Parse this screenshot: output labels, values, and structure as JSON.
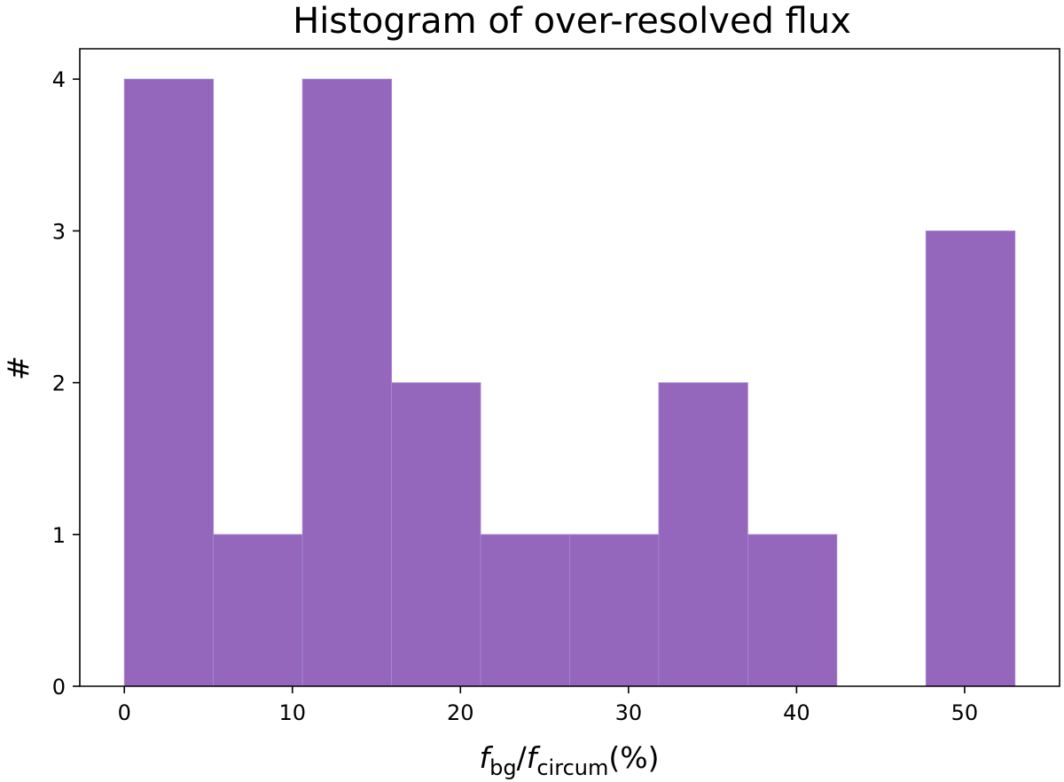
{
  "chart_data": {
    "type": "bar",
    "title": "Histogram of over-resolved flux",
    "xlabel": {
      "var1": "f",
      "sub1": "bg",
      "sep": "/",
      "var2": "f",
      "sub2": "circum",
      "unit": "(%)"
    },
    "ylabel": "#",
    "bin_edges": [
      0,
      5.3,
      10.6,
      15.9,
      21.2,
      26.5,
      31.8,
      37.1,
      42.4,
      47.7,
      53.0
    ],
    "values": [
      4,
      1,
      4,
      2,
      1,
      1,
      2,
      1,
      0,
      3
    ],
    "xlim": [
      -2.65,
      55.65
    ],
    "ylim": [
      0,
      4.2
    ],
    "x_ticks": [
      "0",
      "10",
      "20",
      "30",
      "40",
      "50"
    ],
    "y_ticks": [
      "0",
      "1",
      "2",
      "3",
      "4"
    ],
    "bar_color": "#9467bd",
    "grid": false
  }
}
